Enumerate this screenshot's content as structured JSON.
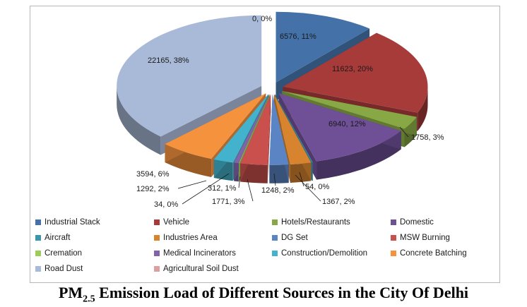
{
  "chart_data": {
    "type": "pie",
    "style": "3d-exploded",
    "legend_placement": "bottom",
    "categories": [
      "Industrial Stack",
      "Vehicle",
      "Hotels/Restaurants",
      "Domestic",
      "Aircraft",
      "Industries Area",
      "DG Set",
      "MSW Burning",
      "Cremation",
      "Medical Incinerators",
      "Construction/Demolition",
      "Concrete Batching",
      "Road Dust",
      "Agricultural Soil Dust"
    ],
    "values": [
      6576,
      11623,
      1758,
      6940,
      54,
      1367,
      1248,
      1771,
      34,
      312,
      1292,
      3594,
      22165,
      0
    ],
    "data_labels": [
      "6576, 11%",
      "11623, 20%",
      "1758, 3%",
      "6940, 12%",
      "54, 0%",
      "1367, 2%",
      "1248, 2%",
      "1771, 3%",
      "34, 0%",
      "312, 1%",
      "1292, 2%",
      "3594, 6%",
      "22165, 38%",
      "0, 0%"
    ],
    "colors": [
      "#4472a8",
      "#a73b3a",
      "#88a845",
      "#6f4f96",
      "#3c95ad",
      "#d8842f",
      "#5b84c4",
      "#c9504d",
      "#9ccd59",
      "#8164a8",
      "#43b2cc",
      "#f5923d",
      "#a9b9d8",
      "#dba0a0"
    ],
    "title_prefix": "PM",
    "title_sub": "2.5",
    "title_rest": " Emission Load of Different Sources in the City Of Delhi"
  }
}
